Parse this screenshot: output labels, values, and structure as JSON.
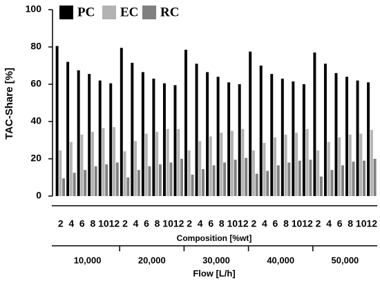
{
  "chart_data": {
    "type": "bar",
    "y_label": "TAC-Share [%]",
    "x_label": "Composition [%wt]",
    "group_label": "Flow [L/h]",
    "categories": [
      "2",
      "4",
      "6",
      "8",
      "10",
      "12",
      "2",
      "4",
      "6",
      "8",
      "10",
      "12",
      "2",
      "4",
      "6",
      "8",
      "10",
      "12",
      "2",
      "4",
      "6",
      "8",
      "10",
      "12",
      "2",
      "4",
      "6",
      "8",
      "10",
      "12"
    ],
    "groups": [
      "10,000",
      "20,000",
      "30,000",
      "40,000",
      "50,000"
    ],
    "series": [
      {
        "name": "PC",
        "color": "#000000",
        "values": [
          80.5,
          72,
          67.5,
          65.5,
          62,
          60.5,
          79.5,
          71.5,
          66.5,
          63,
          60.5,
          59.5,
          78.5,
          71,
          66.5,
          64,
          61,
          60,
          77.5,
          70,
          65.5,
          63,
          61.5,
          60,
          77,
          71,
          66,
          64,
          62,
          61
        ]
      },
      {
        "name": "EC",
        "color": "#b3b3b3",
        "values": [
          24.5,
          29,
          33,
          34.5,
          36.5,
          37,
          24,
          29.5,
          33.5,
          34.5,
          36,
          36,
          24.5,
          29.5,
          32,
          34,
          35,
          36,
          24.5,
          28.5,
          31.5,
          33,
          34,
          36,
          24.5,
          29,
          31.5,
          33,
          33.5,
          35.5
        ]
      },
      {
        "name": "RC",
        "color": "#808080",
        "values": [
          9.5,
          12.5,
          14,
          16,
          17,
          18,
          10,
          14,
          16,
          17,
          18,
          20,
          11.5,
          14.5,
          16.5,
          18,
          19.5,
          20.5,
          12,
          13.5,
          16.5,
          18,
          19,
          19.5,
          10.5,
          14,
          16.5,
          18.5,
          19,
          20
        ]
      }
    ],
    "ylim": [
      0,
      100
    ],
    "yticks": [
      0,
      20,
      40,
      60,
      80,
      100
    ]
  }
}
